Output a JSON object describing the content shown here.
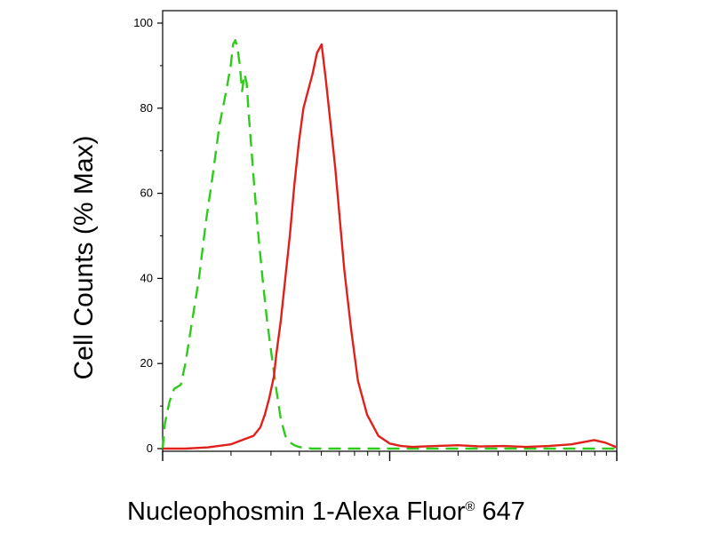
{
  "chart_data": {
    "type": "line",
    "xlabel_main": "Nucleophosmin 1-Alexa Fluor",
    "xlabel_reg": "®",
    "xlabel_tail": " 647",
    "ylabel": "Cell Counts (% Max)",
    "ylim": [
      0,
      100
    ],
    "y_ticks": [
      0,
      20,
      40,
      60,
      80,
      100
    ],
    "x_scale": "log",
    "grid": false,
    "series": [
      {
        "style": "dashed",
        "color": "#2ecc1a",
        "x": [
          0.0,
          0.01,
          0.03,
          0.05,
          0.08,
          0.1,
          0.13,
          0.16,
          0.19,
          0.22,
          0.25,
          0.28,
          0.3,
          0.31,
          0.32,
          0.33,
          0.34,
          0.35,
          0.36,
          0.37,
          0.38,
          0.4,
          0.42,
          0.44,
          0.46,
          0.48,
          0.5,
          0.52,
          0.54,
          0.56,
          0.58,
          0.6,
          0.62,
          0.64,
          0.66,
          0.68,
          0.7,
          0.75,
          0.8,
          0.9,
          1.0,
          1.2,
          1.4,
          1.6,
          1.8,
          2.0
        ],
        "y": [
          0,
          6,
          11,
          14,
          15,
          20,
          30,
          40,
          53,
          64,
          76,
          84,
          90,
          95,
          96,
          94,
          90,
          84,
          88,
          86,
          78,
          64,
          51,
          40,
          30,
          22,
          14,
          7,
          3,
          1.5,
          0.8,
          0.4,
          0.2,
          0.1,
          0,
          0,
          0,
          0,
          0,
          0,
          0,
          0,
          0,
          0,
          0,
          0
        ]
      },
      {
        "style": "solid",
        "color": "#e0201b",
        "x": [
          0.0,
          0.1,
          0.2,
          0.3,
          0.35,
          0.4,
          0.43,
          0.45,
          0.47,
          0.49,
          0.5,
          0.52,
          0.54,
          0.56,
          0.58,
          0.6,
          0.62,
          0.64,
          0.66,
          0.68,
          0.7,
          0.72,
          0.74,
          0.76,
          0.78,
          0.8,
          0.83,
          0.86,
          0.9,
          0.95,
          1.0,
          1.05,
          1.1,
          1.2,
          1.3,
          1.4,
          1.5,
          1.6,
          1.7,
          1.8,
          1.9,
          1.95,
          2.0
        ],
        "y": [
          0,
          0,
          0.3,
          1,
          2,
          3,
          5,
          8,
          12,
          17,
          22,
          30,
          40,
          50,
          62,
          72,
          80,
          84,
          88,
          93,
          95,
          86,
          76,
          66,
          54,
          42,
          28,
          16,
          8,
          3,
          1.2,
          0.6,
          0.4,
          0.6,
          0.8,
          0.5,
          0.6,
          0.4,
          0.6,
          1,
          2,
          1.4,
          0.3
        ]
      }
    ]
  }
}
